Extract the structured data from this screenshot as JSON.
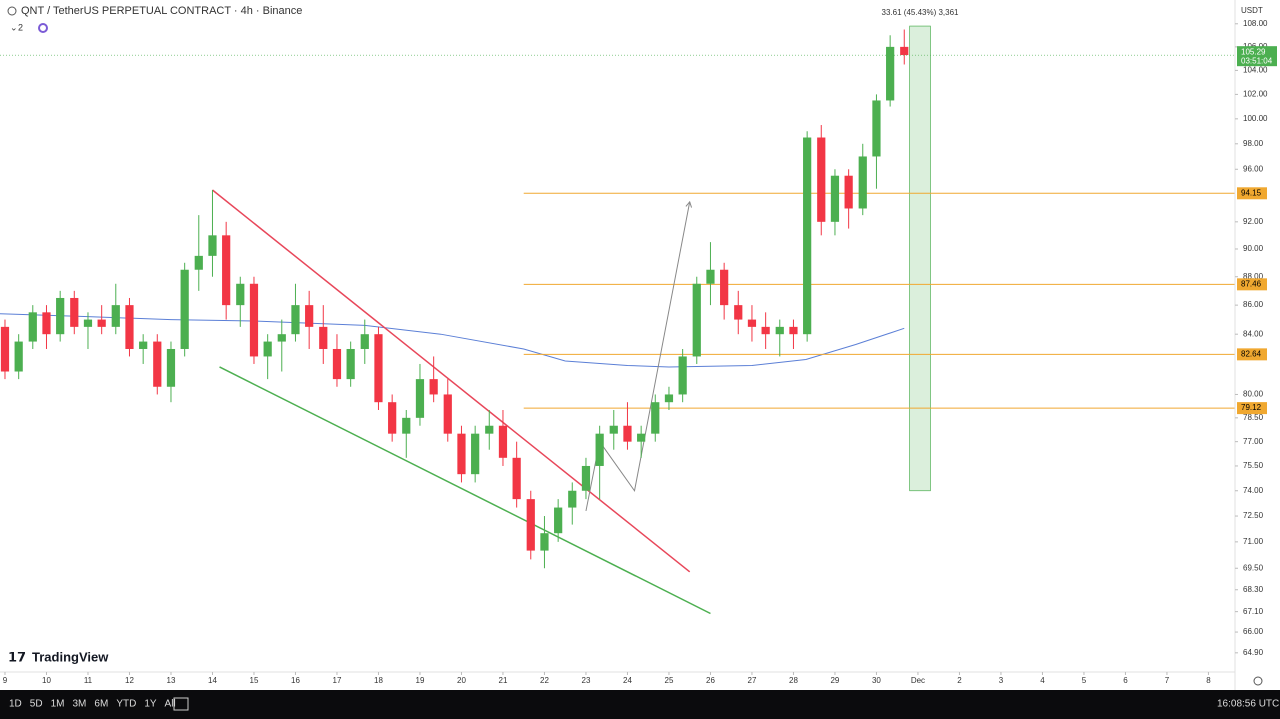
{
  "chart_data": {
    "type": "candlestick",
    "title": "QNT / TetherUS PERPETUAL CONTRACT · 4h · Binance",
    "indicator_count": "2",
    "currency": "USDT",
    "brand": "TradingView",
    "toolbar": [
      "1D",
      "5D",
      "1M",
      "3M",
      "6M",
      "YTD",
      "1Y",
      "All"
    ],
    "clock": "16:08:56 UTC",
    "log_scale": true,
    "up_color": "#4caf50",
    "down_color": "#f23645",
    "xlim": [
      8.88,
      38.64
    ],
    "ylim": [
      63.9,
      110.1
    ],
    "xticks": [
      9,
      10,
      11,
      12,
      13,
      14,
      15,
      16,
      17,
      18,
      19,
      20,
      21,
      22,
      23,
      24,
      25,
      26,
      27,
      28,
      29,
      30,
      {
        "value": 31,
        "label": "Dec"
      },
      {
        "value": 32,
        "label": "2"
      },
      {
        "value": 33,
        "label": "3"
      },
      {
        "value": 34,
        "label": "4"
      },
      {
        "value": 35,
        "label": "5"
      },
      {
        "value": 36,
        "label": "6"
      },
      {
        "value": 37,
        "label": "7"
      },
      {
        "value": 38,
        "label": "8"
      }
    ],
    "yticks": [
      {
        "value": 108,
        "label": "108.00"
      },
      {
        "value": 106,
        "label": "106.00"
      },
      {
        "value": 104,
        "label": "104.00"
      },
      {
        "value": 102,
        "label": "102.00"
      },
      {
        "value": 100,
        "label": "100.00"
      },
      {
        "value": 98,
        "label": "98.00"
      },
      {
        "value": 96,
        "label": "96.00"
      },
      {
        "value": 92,
        "label": "92.00"
      },
      {
        "value": 90,
        "label": "90.00"
      },
      {
        "value": 88,
        "label": "88.00"
      },
      {
        "value": 86,
        "label": "86.00"
      },
      {
        "value": 84,
        "label": "84.00"
      },
      {
        "value": 80,
        "label": "80.00"
      },
      {
        "value": 78.5,
        "label": "78.50"
      },
      {
        "value": 77,
        "label": "77.00"
      },
      {
        "value": 75.5,
        "label": "75.50"
      },
      {
        "value": 74,
        "label": "74.00"
      },
      {
        "value": 72.5,
        "label": "72.50"
      },
      {
        "value": 71,
        "label": "71.00"
      },
      {
        "value": 69.5,
        "label": "69.50"
      },
      {
        "value": 68.3,
        "label": "68.30"
      },
      {
        "value": 67.1,
        "label": "67.10"
      },
      {
        "value": 66,
        "label": "66.00"
      },
      {
        "value": 64.9,
        "label": "64.90"
      }
    ],
    "x": [
      9.0,
      9.33,
      9.67,
      10.0,
      10.33,
      10.67,
      11.0,
      11.33,
      11.67,
      12.0,
      12.33,
      12.67,
      13.0,
      13.33,
      13.67,
      14.0,
      14.33,
      14.67,
      15.0,
      15.33,
      15.67,
      16.0,
      16.33,
      16.67,
      17.0,
      17.33,
      17.67,
      18.0,
      18.33,
      18.67,
      19.0,
      19.33,
      19.67,
      20.0,
      20.33,
      20.67,
      21.0,
      21.33,
      21.67,
      22.0,
      22.33,
      22.67,
      23.0,
      23.33,
      23.67,
      24.0,
      24.33,
      24.67,
      25.0,
      25.33,
      25.67,
      26.0,
      26.33,
      26.67,
      27.0,
      27.33,
      27.67,
      28.0,
      28.33,
      28.67,
      29.0,
      29.33,
      29.67,
      30.0,
      30.33,
      30.67
    ],
    "open": [
      84.5,
      81.5,
      83.5,
      85.5,
      84,
      86.5,
      84.5,
      85,
      84.5,
      86,
      83,
      83.5,
      80.5,
      83,
      88.5,
      89.5,
      91,
      86,
      87.5,
      82.5,
      83.5,
      84,
      86,
      84.5,
      83,
      81,
      83,
      84,
      79.5,
      77.5,
      78.5,
      81,
      80,
      77.5,
      75,
      77.5,
      78,
      76,
      73.5,
      70.5,
      71.5,
      73,
      74,
      75.5,
      77.5,
      78,
      77,
      77.5,
      79.5,
      80,
      82.5,
      87.5,
      88.5,
      86,
      85,
      84.5,
      84,
      84.5,
      84,
      98.5,
      92,
      95.5,
      93,
      97,
      101.5,
      106
    ],
    "high": [
      85,
      84,
      86,
      86,
      87,
      87,
      85.5,
      86,
      87.5,
      86.5,
      84,
      84,
      83.5,
      89,
      92.5,
      94.4,
      92,
      88,
      88,
      84,
      85,
      87.5,
      87,
      86,
      84,
      83.5,
      85,
      84.5,
      80,
      79,
      82,
      82.5,
      81,
      78,
      78,
      79,
      79,
      77,
      74,
      72.5,
      73.5,
      74.5,
      76,
      78,
      79,
      79.5,
      78,
      80,
      80.5,
      83,
      88,
      90.5,
      89,
      87,
      86,
      85.5,
      85,
      85,
      99,
      99.5,
      96,
      96,
      98,
      102,
      107,
      107.5
    ],
    "low": [
      81,
      81,
      83,
      83,
      83.5,
      84,
      83,
      84,
      84,
      82.5,
      82,
      80,
      79.5,
      82.5,
      87,
      88,
      85,
      84.5,
      82,
      81,
      81.5,
      83.5,
      83,
      82,
      80.5,
      80.5,
      82,
      79,
      77,
      76,
      78,
      79.5,
      77,
      74.5,
      74.5,
      76.5,
      75.5,
      73,
      70,
      69.5,
      71,
      72,
      73.5,
      73.5,
      76.5,
      76.5,
      76,
      77,
      79,
      79.5,
      82,
      86,
      85,
      84,
      83.5,
      83,
      82.5,
      83,
      83.5,
      91,
      91,
      91.5,
      92.5,
      94.5,
      101,
      104.5
    ],
    "close": [
      81.5,
      83.5,
      85.5,
      84,
      86.5,
      84.5,
      85,
      84.5,
      86,
      83,
      83.5,
      80.5,
      83,
      88.5,
      89.5,
      91,
      86,
      87.5,
      82.5,
      83.5,
      84,
      86,
      84.5,
      83,
      81,
      83,
      84,
      79.5,
      77.5,
      78.5,
      81,
      80,
      77.5,
      75,
      77.5,
      78,
      76,
      73.5,
      70.5,
      71.5,
      73,
      74,
      75.5,
      77.5,
      78,
      77,
      77.5,
      79.5,
      80,
      82.5,
      87.5,
      88.5,
      86,
      85,
      84.5,
      84,
      84.5,
      84,
      98.5,
      92,
      95.5,
      93,
      97,
      101.5,
      106,
      105.3
    ],
    "moving_average": {
      "color": "#5b7fd6",
      "x": [
        8.88,
        11,
        13,
        15,
        17.67,
        19.5,
        21.5,
        22.5,
        24,
        25,
        27,
        28.3,
        29.5,
        30.67
      ],
      "values": [
        85.4,
        85.2,
        85.0,
        84.9,
        84.6,
        84.0,
        83.0,
        82.2,
        81.9,
        81.8,
        81.9,
        82.3,
        83.3,
        84.4
      ]
    },
    "levels": {
      "color": "#f0a830",
      "x_start": 21.5,
      "values": [
        94.15,
        87.46,
        82.64,
        79.12
      ]
    },
    "trendlines": [
      {
        "color": "#e8475a",
        "x": [
          14.0,
          25.5
        ],
        "values": [
          94.4,
          69.3
        ]
      },
      {
        "color": "#4caf50",
        "x": [
          14.17,
          26.0
        ],
        "values": [
          81.8,
          67.0
        ]
      }
    ],
    "projection": {
      "color": "#888888",
      "x": [
        23.0,
        23.33,
        24.17,
        25.5
      ],
      "values": [
        72.8,
        77,
        74,
        93.5
      ]
    },
    "measure": {
      "x": [
        30.8,
        31.3
      ],
      "values": [
        74,
        107.8
      ],
      "label": "33.61 (45.43%) 3,361"
    },
    "last_price": {
      "value": 105.29,
      "countdown": "03:51:04"
    }
  }
}
